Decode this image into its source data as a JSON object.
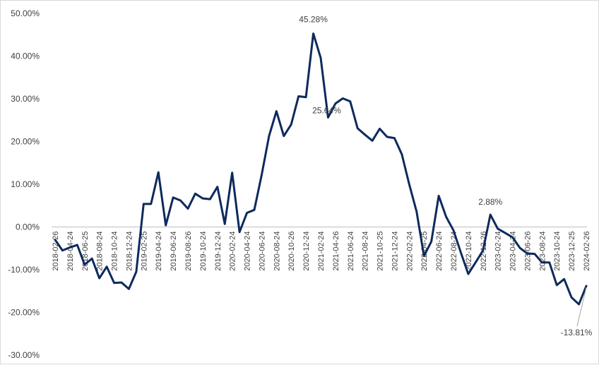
{
  "chart_data": {
    "type": "line",
    "title": "",
    "xlabel": "",
    "ylabel": "",
    "ylim": [
      -30,
      50
    ],
    "y_ticks": [
      "50.00%",
      "40.00%",
      "30.00%",
      "20.00%",
      "10.00%",
      "0.00%",
      "-10.00%",
      "-20.00%",
      "-30.00%"
    ],
    "y_tick_values": [
      50,
      40,
      30,
      20,
      10,
      0,
      -10,
      -20,
      -30
    ],
    "x_tick_labels": [
      "2018-02-26",
      "2018-04-24",
      "2018-06-25",
      "2018-08-24",
      "2018-10-24",
      "2018-12-24",
      "2019-02-25",
      "2019-04-24",
      "2019-06-24",
      "2019-08-26",
      "2019-10-24",
      "2019-12-24",
      "2020-02-24",
      "2020-04-24",
      "2020-06-24",
      "2020-08-24",
      "2020-10-26",
      "2020-12-24",
      "2021-02-24",
      "2021-04-26",
      "2021-06-24",
      "2021-08-24",
      "2021-10-25",
      "2021-12-24",
      "2022-02-24",
      "2022-04-25",
      "2022-06-24",
      "2022-08-24",
      "2022-10-24",
      "2022-12-26",
      "2023-02-24",
      "2023-04-24",
      "2023-06-26",
      "2023-08-24",
      "2023-10-24",
      "2023-12-25",
      "2024-02-26"
    ],
    "series": [
      {
        "color": "#0d2a5c",
        "values": [
          -3.0,
          -5.5,
          -4.8,
          -4.2,
          -8.8,
          -7.4,
          -12.0,
          -9.3,
          -13.1,
          -13.0,
          -14.5,
          -10.5,
          5.4,
          5.4,
          12.8,
          0.4,
          6.9,
          6.2,
          4.3,
          7.8,
          6.7,
          6.5,
          9.4,
          0.7,
          12.7,
          -1.2,
          3.3,
          4.0,
          12.2,
          21.3,
          27.1,
          21.3,
          24.0,
          30.6,
          30.4,
          45.28,
          39.6,
          25.64,
          28.9,
          30.1,
          29.4,
          23.1,
          21.6,
          20.2,
          23.0,
          21.1,
          20.8,
          17.0,
          10.0,
          3.6,
          -6.8,
          -3.4,
          7.3,
          2.4,
          -0.8,
          -6.0,
          -11.0,
          -8.3,
          -5.5,
          2.88,
          -0.4,
          -1.4,
          -2.4,
          -4.9,
          -6.2,
          -6.3,
          -8.3,
          -8.3,
          -13.6,
          -12.2,
          -16.5,
          -18.1,
          -13.81
        ]
      }
    ],
    "annotations": [
      {
        "text": "45.28%",
        "index": 35,
        "value": 45.28
      },
      {
        "text": "25.64%",
        "index": 37,
        "value": 25.64
      },
      {
        "text": "2.88%",
        "index": 59,
        "value": 2.88
      },
      {
        "text": "-13.81%",
        "index": 72,
        "value": -13.81
      }
    ],
    "grid": false,
    "legend": "none"
  }
}
